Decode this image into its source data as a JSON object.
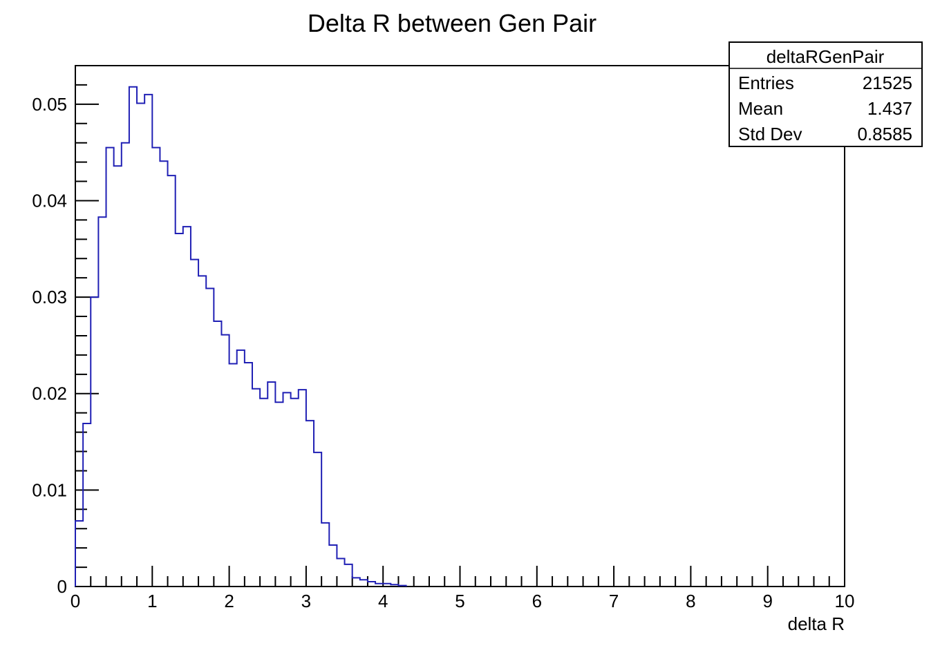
{
  "chart_data": {
    "type": "histogram",
    "title": "Delta R between Gen Pair",
    "xlabel": "delta R",
    "ylabel": "",
    "xlim": [
      0,
      10
    ],
    "ylim": [
      0,
      0.054
    ],
    "bin_width": 0.1,
    "series_color": "#1f1fb4",
    "x_ticks": [
      "0",
      "1",
      "2",
      "3",
      "4",
      "5",
      "6",
      "7",
      "8",
      "9",
      "10"
    ],
    "y_ticks": [
      {
        "value": 0,
        "label": "0"
      },
      {
        "value": 0.01,
        "label": "0.01"
      },
      {
        "value": 0.02,
        "label": "0.02"
      },
      {
        "value": 0.03,
        "label": "0.03"
      },
      {
        "value": 0.04,
        "label": "0.04"
      },
      {
        "value": 0.05,
        "label": "0.05"
      }
    ],
    "values": [
      0.0068,
      0.0169,
      0.03,
      0.0383,
      0.0455,
      0.0436,
      0.046,
      0.0518,
      0.0501,
      0.051,
      0.0455,
      0.0441,
      0.0426,
      0.0366,
      0.0373,
      0.0339,
      0.0322,
      0.0309,
      0.0275,
      0.0261,
      0.0231,
      0.0245,
      0.0232,
      0.0205,
      0.0195,
      0.0212,
      0.0191,
      0.0201,
      0.0195,
      0.0204,
      0.0172,
      0.0139,
      0.0066,
      0.0043,
      0.0029,
      0.0023,
      0.0009,
      0.0007,
      0.0005,
      0.0003,
      0.0003,
      0.0002,
      0.0001
    ]
  },
  "stats_box": {
    "name": "deltaRGenPair",
    "rows": [
      {
        "label": "Entries",
        "value": "21525"
      },
      {
        "label": "Mean",
        "value": "1.437"
      },
      {
        "label": "Std Dev",
        "value": "0.8585"
      }
    ]
  }
}
